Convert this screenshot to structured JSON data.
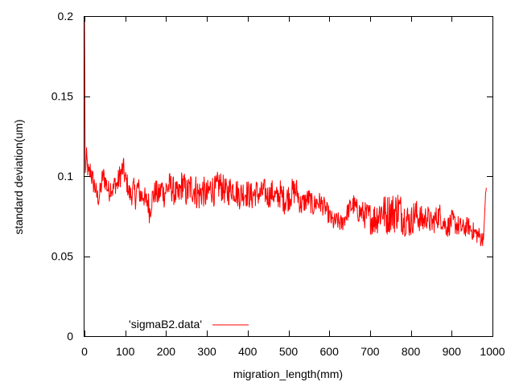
{
  "chart_data": {
    "type": "line",
    "title": "",
    "xlabel": "migration_length(mm)",
    "ylabel": "standard deviation(um)",
    "xlim": [
      0,
      1000
    ],
    "ylim": [
      0,
      0.2
    ],
    "xticks": [
      "0",
      "100",
      "200",
      "300",
      "400",
      "500",
      "600",
      "700",
      "800",
      "900",
      "1000"
    ],
    "yticks": [
      "0",
      "0.05",
      "0.1",
      "0.15",
      "0.2"
    ],
    "grid": false,
    "legend_position": "bottom-left",
    "series": [
      {
        "name": "'sigmaB2.data'",
        "color": "#ff0000",
        "x": [
          0,
          2,
          5,
          10,
          15,
          20,
          25,
          30,
          35,
          40,
          45,
          50,
          55,
          60,
          65,
          70,
          75,
          80,
          85,
          90,
          95,
          100,
          105,
          110,
          115,
          120,
          125,
          130,
          135,
          140,
          145,
          150,
          155,
          160,
          165,
          170,
          175,
          180,
          185,
          190,
          195,
          200,
          210,
          220,
          230,
          240,
          250,
          260,
          270,
          280,
          290,
          300,
          310,
          320,
          330,
          340,
          350,
          360,
          370,
          380,
          390,
          400,
          410,
          420,
          430,
          440,
          450,
          460,
          470,
          480,
          490,
          500,
          510,
          520,
          530,
          540,
          550,
          560,
          570,
          580,
          590,
          600,
          610,
          620,
          630,
          640,
          650,
          660,
          670,
          680,
          690,
          700,
          710,
          720,
          730,
          740,
          750,
          760,
          770,
          780,
          790,
          800,
          810,
          820,
          830,
          840,
          850,
          860,
          870,
          880,
          890,
          900,
          910,
          920,
          930,
          940,
          950,
          960,
          970,
          975,
          980,
          983,
          985
        ],
        "y": [
          0.2,
          0.102,
          0.112,
          0.1,
          0.104,
          0.097,
          0.094,
          0.088,
          0.086,
          0.092,
          0.1,
          0.098,
          0.094,
          0.09,
          0.094,
          0.091,
          0.096,
          0.094,
          0.099,
          0.102,
          0.105,
          0.098,
          0.095,
          0.089,
          0.088,
          0.092,
          0.087,
          0.093,
          0.09,
          0.087,
          0.089,
          0.083,
          0.085,
          0.078,
          0.086,
          0.088,
          0.091,
          0.087,
          0.09,
          0.093,
          0.088,
          0.092,
          0.094,
          0.09,
          0.087,
          0.096,
          0.089,
          0.093,
          0.092,
          0.088,
          0.091,
          0.087,
          0.093,
          0.09,
          0.095,
          0.092,
          0.089,
          0.093,
          0.091,
          0.088,
          0.09,
          0.089,
          0.087,
          0.09,
          0.088,
          0.091,
          0.087,
          0.09,
          0.086,
          0.089,
          0.085,
          0.087,
          0.09,
          0.091,
          0.082,
          0.084,
          0.086,
          0.081,
          0.084,
          0.083,
          0.08,
          0.075,
          0.071,
          0.072,
          0.07,
          0.075,
          0.08,
          0.082,
          0.078,
          0.077,
          0.075,
          0.074,
          0.073,
          0.076,
          0.079,
          0.075,
          0.078,
          0.077,
          0.08,
          0.075,
          0.073,
          0.071,
          0.077,
          0.074,
          0.072,
          0.075,
          0.07,
          0.073,
          0.076,
          0.071,
          0.068,
          0.072,
          0.07,
          0.068,
          0.067,
          0.069,
          0.066,
          0.064,
          0.062,
          0.06,
          0.068,
          0.09,
          0.092
        ],
        "noise": [
          0,
          0,
          0.006,
          0.007,
          0.008,
          0.008,
          0.007,
          0.006,
          0.006,
          0.007,
          0.008,
          0.007,
          0.007,
          0.007,
          0.007,
          0.007,
          0.007,
          0.007,
          0.008,
          0.008,
          0.008,
          0.007,
          0.007,
          0.007,
          0.007,
          0.008,
          0.008,
          0.008,
          0.008,
          0.008,
          0.008,
          0.008,
          0.009,
          0.009,
          0.008,
          0.008,
          0.008,
          0.008,
          0.008,
          0.008,
          0.008,
          0.009,
          0.009,
          0.009,
          0.009,
          0.01,
          0.01,
          0.01,
          0.011,
          0.011,
          0.01,
          0.01,
          0.01,
          0.01,
          0.01,
          0.009,
          0.009,
          0.009,
          0.009,
          0.009,
          0.009,
          0.009,
          0.009,
          0.009,
          0.008,
          0.008,
          0.008,
          0.008,
          0.008,
          0.009,
          0.009,
          0.009,
          0.009,
          0.008,
          0.008,
          0.007,
          0.007,
          0.007,
          0.007,
          0.007,
          0.006,
          0.006,
          0.006,
          0.006,
          0.006,
          0.006,
          0.006,
          0.007,
          0.007,
          0.008,
          0.009,
          0.01,
          0.011,
          0.012,
          0.012,
          0.013,
          0.013,
          0.013,
          0.013,
          0.012,
          0.011,
          0.01,
          0.01,
          0.009,
          0.009,
          0.008,
          0.008,
          0.008,
          0.008,
          0.007,
          0.007,
          0.007,
          0.007,
          0.007,
          0.006,
          0.006,
          0.006,
          0.006,
          0.006,
          0.006,
          0.004,
          0.002,
          0.001
        ]
      }
    ]
  }
}
